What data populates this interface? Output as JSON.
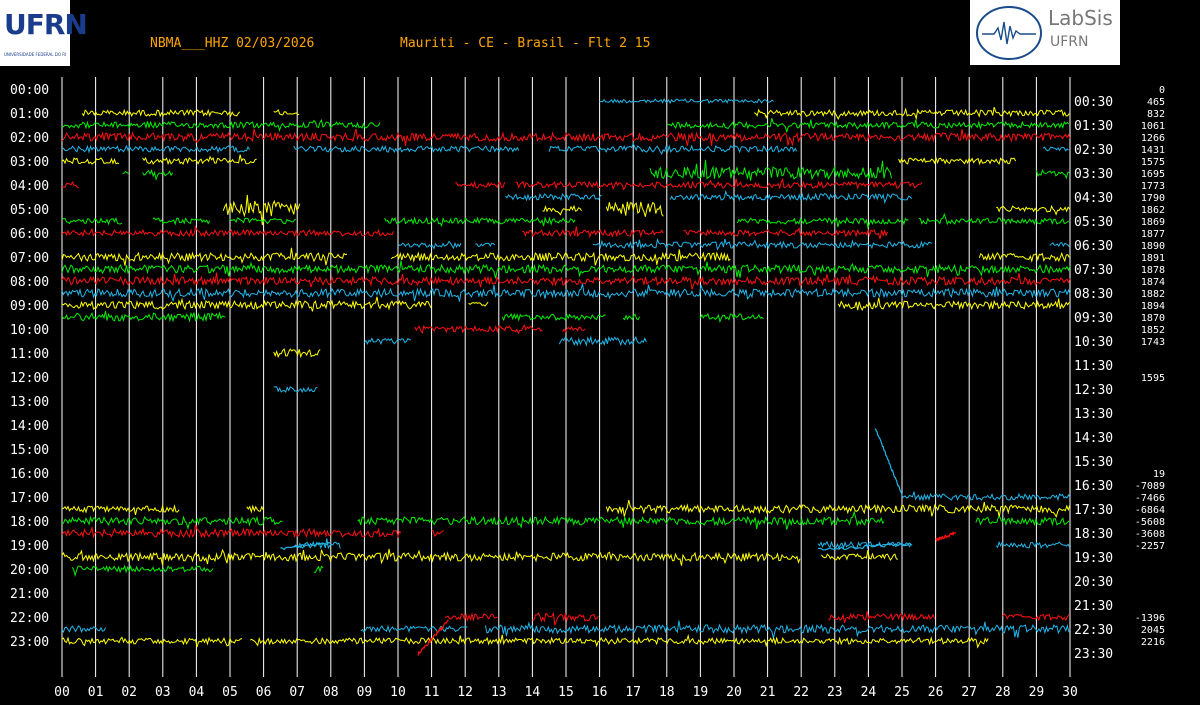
{
  "header": {
    "station": "NBMA___HHZ 02/03/2026",
    "location": "Mauriti - CE - Brasil - Flt 2 15"
  },
  "logos": {
    "ufrn": "UFRN",
    "ufrn_sub": "UNIVERSIDADE FEDERAL DO RIO GRANDE DO NORTE",
    "labsis_title": "LabSis",
    "labsis_sub": "UFRN"
  },
  "colors": {
    "background": "#000000",
    "grid": "#ffffff",
    "axis_text": "#ffffff",
    "header_text": "#ffa500",
    "trace_colors": [
      "#ffff00",
      "#00ee00",
      "#ff1010",
      "#22b5e8"
    ]
  },
  "chart_data": {
    "type": "line",
    "title": "",
    "xlabel": "",
    "ylabel": "",
    "x_ticks": [
      "00",
      "01",
      "02",
      "03",
      "04",
      "05",
      "06",
      "07",
      "08",
      "09",
      "10",
      "11",
      "12",
      "13",
      "14",
      "15",
      "16",
      "17",
      "18",
      "19",
      "20",
      "21",
      "22",
      "23",
      "24",
      "25",
      "26",
      "27",
      "28",
      "29",
      "30"
    ],
    "xlim": [
      0,
      30
    ],
    "left_ticks": [
      "00:00",
      "01:00",
      "02:00",
      "03:00",
      "04:00",
      "05:00",
      "06:00",
      "07:00",
      "08:00",
      "09:00",
      "10:00",
      "11:00",
      "12:00",
      "13:00",
      "14:00",
      "15:00",
      "16:00",
      "17:00",
      "18:00",
      "19:00",
      "20:00",
      "21:00",
      "22:00",
      "23:00"
    ],
    "right_ticks": [
      "00:30",
      "01:30",
      "02:30",
      "03:30",
      "04:30",
      "05:30",
      "06:30",
      "07:30",
      "08:30",
      "09:30",
      "10:30",
      "11:30",
      "12:30",
      "13:30",
      "14:30",
      "15:30",
      "16:30",
      "17:30",
      "18:30",
      "19:30",
      "20:30",
      "21:30",
      "22:30",
      "23:30"
    ],
    "line_offsets": [
      {
        "row": 0,
        "value": "0"
      },
      {
        "row": 1,
        "value": "465"
      },
      {
        "row": 2,
        "value": "832"
      },
      {
        "row": 3,
        "value": "1061"
      },
      {
        "row": 4,
        "value": "1266"
      },
      {
        "row": 5,
        "value": "1431"
      },
      {
        "row": 6,
        "value": "1575"
      },
      {
        "row": 7,
        "value": "1695"
      },
      {
        "row": 8,
        "value": "1773"
      },
      {
        "row": 9,
        "value": "1790"
      },
      {
        "row": 10,
        "value": "1862"
      },
      {
        "row": 11,
        "value": "1869"
      },
      {
        "row": 12,
        "value": "1877"
      },
      {
        "row": 13,
        "value": "1890"
      },
      {
        "row": 14,
        "value": "1891"
      },
      {
        "row": 15,
        "value": "1878"
      },
      {
        "row": 16,
        "value": "1874"
      },
      {
        "row": 17,
        "value": "1882"
      },
      {
        "row": 18,
        "value": "1894"
      },
      {
        "row": 19,
        "value": "1870"
      },
      {
        "row": 20,
        "value": "1852"
      },
      {
        "row": 21,
        "value": "1743"
      },
      {
        "row": 24,
        "value": "1595"
      },
      {
        "row": 32,
        "value": "19"
      },
      {
        "row": 33,
        "value": "-7089"
      },
      {
        "row": 34,
        "value": "-7466"
      },
      {
        "row": 35,
        "value": "-6864"
      },
      {
        "row": 36,
        "value": "-5608"
      },
      {
        "row": 37,
        "value": "-3608"
      },
      {
        "row": 38,
        "value": "-2257"
      },
      {
        "row": 44,
        "value": "-1396"
      },
      {
        "row": 45,
        "value": "2045"
      },
      {
        "row": 46,
        "value": "2216"
      }
    ],
    "segments": [
      {
        "row": 1,
        "color": 3,
        "start": 16.0,
        "end": 21.2,
        "amp": 2
      },
      {
        "row": 2,
        "color": 0,
        "start": 0.6,
        "end": 5.3,
        "amp": 3
      },
      {
        "row": 2,
        "color": 0,
        "start": 6.3,
        "end": 7.1,
        "amp": 2
      },
      {
        "row": 2,
        "color": 0,
        "start": 20.6,
        "end": 30.0,
        "amp": 3
      },
      {
        "row": 3,
        "color": 1,
        "start": 0.0,
        "end": 9.5,
        "amp": 3
      },
      {
        "row": 3,
        "color": 1,
        "start": 18.0,
        "end": 30.0,
        "amp": 3
      },
      {
        "row": 4,
        "color": 2,
        "start": 0.0,
        "end": 30.0,
        "amp": 4
      },
      {
        "row": 5,
        "color": 3,
        "start": 0.0,
        "end": 5.6,
        "amp": 3
      },
      {
        "row": 5,
        "color": 3,
        "start": 6.9,
        "end": 13.6,
        "amp": 3
      },
      {
        "row": 5,
        "color": 3,
        "start": 14.5,
        "end": 21.9,
        "amp": 3
      },
      {
        "row": 5,
        "color": 3,
        "start": 29.2,
        "end": 30.0,
        "amp": 2
      },
      {
        "row": 6,
        "color": 0,
        "start": 0.0,
        "end": 1.7,
        "amp": 3
      },
      {
        "row": 6,
        "color": 0,
        "start": 2.4,
        "end": 5.8,
        "amp": 3
      },
      {
        "row": 6,
        "color": 0,
        "start": 24.9,
        "end": 28.4,
        "amp": 3
      },
      {
        "row": 7,
        "color": 1,
        "start": 1.8,
        "end": 2.0,
        "amp": 3
      },
      {
        "row": 7,
        "color": 1,
        "start": 2.4,
        "end": 3.3,
        "amp": 3
      },
      {
        "row": 7,
        "color": 1,
        "start": 17.5,
        "end": 24.7,
        "amp": 6
      },
      {
        "row": 7,
        "color": 1,
        "start": 29.0,
        "end": 30.0,
        "amp": 3
      },
      {
        "row": 8,
        "color": 2,
        "start": 0.0,
        "end": 0.5,
        "amp": 3
      },
      {
        "row": 8,
        "color": 2,
        "start": 11.7,
        "end": 13.2,
        "amp": 3
      },
      {
        "row": 8,
        "color": 2,
        "start": 13.5,
        "end": 25.6,
        "amp": 3
      },
      {
        "row": 9,
        "color": 3,
        "start": 13.2,
        "end": 16.1,
        "amp": 3
      },
      {
        "row": 9,
        "color": 3,
        "start": 18.1,
        "end": 25.3,
        "amp": 3
      },
      {
        "row": 10,
        "color": 0,
        "start": 4.8,
        "end": 7.1,
        "amp": 8
      },
      {
        "row": 10,
        "color": 0,
        "start": 14.3,
        "end": 15.5,
        "amp": 3
      },
      {
        "row": 10,
        "color": 0,
        "start": 16.2,
        "end": 17.9,
        "amp": 8
      },
      {
        "row": 10,
        "color": 0,
        "start": 27.8,
        "end": 30.0,
        "amp": 3
      },
      {
        "row": 11,
        "color": 1,
        "start": 0.0,
        "end": 1.8,
        "amp": 3
      },
      {
        "row": 11,
        "color": 1,
        "start": 2.7,
        "end": 4.4,
        "amp": 3
      },
      {
        "row": 11,
        "color": 1,
        "start": 5.0,
        "end": 7.0,
        "amp": 3
      },
      {
        "row": 11,
        "color": 1,
        "start": 9.6,
        "end": 15.3,
        "amp": 3
      },
      {
        "row": 11,
        "color": 1,
        "start": 20.1,
        "end": 25.2,
        "amp": 3
      },
      {
        "row": 11,
        "color": 1,
        "start": 25.5,
        "end": 30.0,
        "amp": 3
      },
      {
        "row": 12,
        "color": 2,
        "start": 0.0,
        "end": 9.9,
        "amp": 3
      },
      {
        "row": 12,
        "color": 2,
        "start": 13.7,
        "end": 17.9,
        "amp": 3
      },
      {
        "row": 12,
        "color": 2,
        "start": 18.5,
        "end": 24.6,
        "amp": 3
      },
      {
        "row": 13,
        "color": 3,
        "start": 10.0,
        "end": 11.9,
        "amp": 2
      },
      {
        "row": 13,
        "color": 3,
        "start": 12.3,
        "end": 12.9,
        "amp": 2
      },
      {
        "row": 13,
        "color": 3,
        "start": 15.8,
        "end": 25.9,
        "amp": 3
      },
      {
        "row": 13,
        "color": 3,
        "start": 29.4,
        "end": 30.0,
        "amp": 2
      },
      {
        "row": 14,
        "color": 0,
        "start": 0.0,
        "end": 8.5,
        "amp": 4
      },
      {
        "row": 14,
        "color": 0,
        "start": 9.8,
        "end": 19.9,
        "amp": 4
      },
      {
        "row": 14,
        "color": 0,
        "start": 27.3,
        "end": 30.0,
        "amp": 4
      },
      {
        "row": 15,
        "color": 1,
        "start": 0.0,
        "end": 30.0,
        "amp": 4
      },
      {
        "row": 16,
        "color": 2,
        "start": 0.0,
        "end": 30.0,
        "amp": 4
      },
      {
        "row": 17,
        "color": 3,
        "start": 0.0,
        "end": 30.0,
        "amp": 4
      },
      {
        "row": 18,
        "color": 0,
        "start": 0.0,
        "end": 11.0,
        "amp": 4
      },
      {
        "row": 18,
        "color": 0,
        "start": 12.1,
        "end": 12.7,
        "amp": 3
      },
      {
        "row": 18,
        "color": 0,
        "start": 23.1,
        "end": 30.0,
        "amp": 4
      },
      {
        "row": 19,
        "color": 1,
        "start": 0.0,
        "end": 4.9,
        "amp": 4
      },
      {
        "row": 19,
        "color": 1,
        "start": 13.1,
        "end": 16.2,
        "amp": 3
      },
      {
        "row": 19,
        "color": 1,
        "start": 16.7,
        "end": 17.2,
        "amp": 3
      },
      {
        "row": 19,
        "color": 1,
        "start": 19.0,
        "end": 20.9,
        "amp": 3
      },
      {
        "row": 20,
        "color": 2,
        "start": 10.5,
        "end": 14.3,
        "amp": 3
      },
      {
        "row": 20,
        "color": 2,
        "start": 14.9,
        "end": 15.6,
        "amp": 3
      },
      {
        "row": 21,
        "color": 3,
        "start": 9.0,
        "end": 10.4,
        "amp": 3
      },
      {
        "row": 21,
        "color": 3,
        "start": 14.8,
        "end": 17.4,
        "amp": 4
      },
      {
        "row": 22,
        "color": 0,
        "start": 6.3,
        "end": 7.7,
        "amp": 4
      },
      {
        "row": 25,
        "color": 3,
        "start": 6.3,
        "end": 7.6,
        "amp": 3
      },
      {
        "row": 34,
        "color": 3,
        "start": 25.0,
        "end": 30.0,
        "amp": 3
      },
      {
        "row": 35,
        "color": 0,
        "start": 0.0,
        "end": 3.5,
        "amp": 3
      },
      {
        "row": 35,
        "color": 0,
        "start": 5.5,
        "end": 6.0,
        "amp": 3
      },
      {
        "row": 35,
        "color": 0,
        "start": 16.2,
        "end": 30.0,
        "amp": 4
      },
      {
        "row": 36,
        "color": 1,
        "start": 0.0,
        "end": 6.6,
        "amp": 4
      },
      {
        "row": 36,
        "color": 1,
        "start": 8.8,
        "end": 24.5,
        "amp": 4
      },
      {
        "row": 36,
        "color": 1,
        "start": 27.2,
        "end": 30.0,
        "amp": 4
      },
      {
        "row": 37,
        "color": 2,
        "start": 0.0,
        "end": 10.1,
        "amp": 4
      },
      {
        "row": 37,
        "color": 2,
        "start": 11.0,
        "end": 11.4,
        "amp": 3
      },
      {
        "row": 38,
        "color": 3,
        "start": 6.9,
        "end": 8.3,
        "amp": 3
      },
      {
        "row": 38,
        "color": 3,
        "start": 22.5,
        "end": 25.3,
        "amp": 3
      },
      {
        "row": 38,
        "color": 3,
        "start": 27.8,
        "end": 30.0,
        "amp": 3
      },
      {
        "row": 39,
        "color": 0,
        "start": 0.0,
        "end": 22.0,
        "amp": 4
      },
      {
        "row": 39,
        "color": 0,
        "start": 22.6,
        "end": 24.9,
        "amp": 3
      },
      {
        "row": 40,
        "color": 1,
        "start": 0.3,
        "end": 4.5,
        "amp": 3
      },
      {
        "row": 40,
        "color": 1,
        "start": 7.5,
        "end": 7.8,
        "amp": 4
      },
      {
        "row": 44,
        "color": 2,
        "start": 11.4,
        "end": 13.0,
        "amp": 3
      },
      {
        "row": 44,
        "color": 2,
        "start": 14.0,
        "end": 16.0,
        "amp": 4
      },
      {
        "row": 44,
        "color": 2,
        "start": 22.8,
        "end": 26.0,
        "amp": 3
      },
      {
        "row": 44,
        "color": 2,
        "start": 28.0,
        "end": 30.0,
        "amp": 3
      },
      {
        "row": 45,
        "color": 3,
        "start": 0.0,
        "end": 1.3,
        "amp": 3
      },
      {
        "row": 45,
        "color": 3,
        "start": 8.9,
        "end": 12.1,
        "amp": 3
      },
      {
        "row": 45,
        "color": 3,
        "start": 12.6,
        "end": 30.0,
        "amp": 4
      },
      {
        "row": 46,
        "color": 0,
        "start": 0.0,
        "end": 5.4,
        "amp": 3
      },
      {
        "row": 46,
        "color": 0,
        "start": 5.6,
        "end": 27.6,
        "amp": 3
      }
    ],
    "drift_segments": [
      {
        "color": 3,
        "x1": 24.2,
        "row1": 28.2,
        "x2": 25.0,
        "row2": 33.8
      },
      {
        "color": 3,
        "x1": 6.5,
        "row1": 38.3,
        "x2": 8.0,
        "row2": 37.8
      },
      {
        "color": 2,
        "x1": 10.6,
        "row1": 47.1,
        "x2": 11.5,
        "row2": 44.3
      },
      {
        "color": 2,
        "x1": 26.0,
        "row1": 37.6,
        "x2": 26.6,
        "row2": 37.0
      },
      {
        "color": 3,
        "x1": 22.5,
        "row1": 38.4,
        "x2": 25.3,
        "row2": 37.9
      }
    ]
  }
}
